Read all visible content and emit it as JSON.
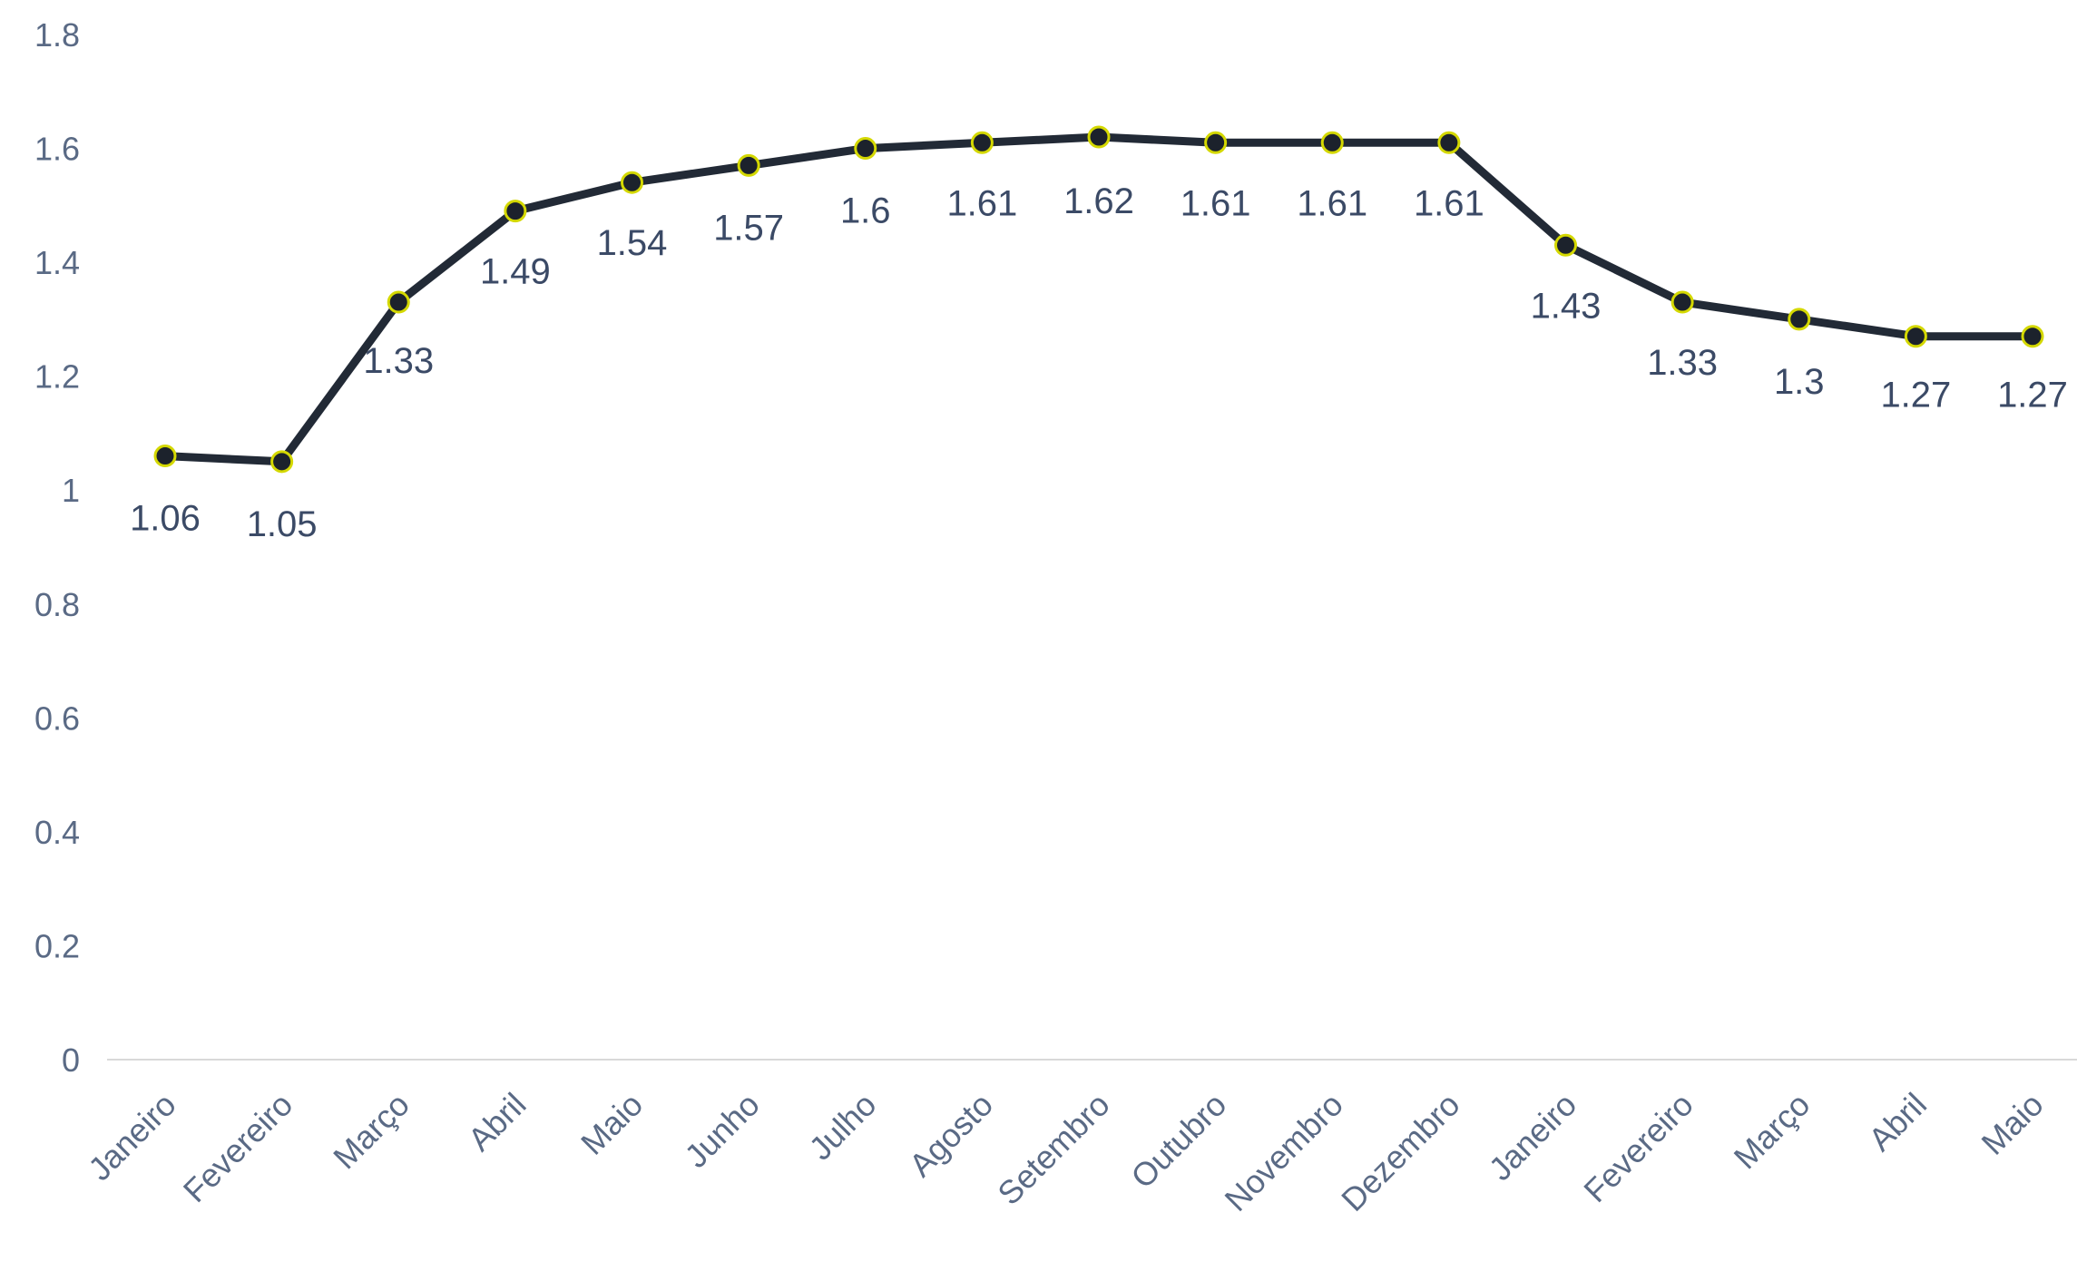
{
  "chart_data": {
    "type": "line",
    "title": "",
    "xlabel": "",
    "ylabel": "",
    "categories": [
      "Janeiro",
      "Fevereiro",
      "Março",
      "Abril",
      "Maio",
      "Junho",
      "Julho",
      "Agosto",
      "Setembro",
      "Outubro",
      "Novembro",
      "Dezembro",
      "Janeiro",
      "Fevereiro",
      "Março",
      "Abril",
      "Maio"
    ],
    "series": [
      {
        "values": [
          1.06,
          1.05,
          1.33,
          1.49,
          1.54,
          1.57,
          1.6,
          1.61,
          1.62,
          1.61,
          1.61,
          1.61,
          1.43,
          1.33,
          1.3,
          1.27,
          1.27
        ]
      }
    ],
    "data_labels": [
      "1.06",
      "1.05",
      "1.33",
      "1.49",
      "1.54",
      "1.57",
      "1.6",
      "1.61",
      "1.62",
      "1.61",
      "1.61",
      "1.61",
      "1.43",
      "1.33",
      "1.3",
      "1.27",
      "1.27"
    ],
    "yticks": [
      "0",
      "0.2",
      "0.4",
      "0.6",
      "0.8",
      "1",
      "1.2",
      "1.4",
      "1.6",
      "1.8"
    ],
    "ylim": [
      0,
      1.8
    ],
    "grid": false,
    "legend": "none",
    "colors": {
      "line": "#222a36",
      "marker_fill": "#1c222c",
      "marker_stroke": "#d4d800",
      "axis": "#d9d9d9",
      "tick_text": "#5a6a85",
      "data_label_text": "#3b4a66"
    }
  }
}
